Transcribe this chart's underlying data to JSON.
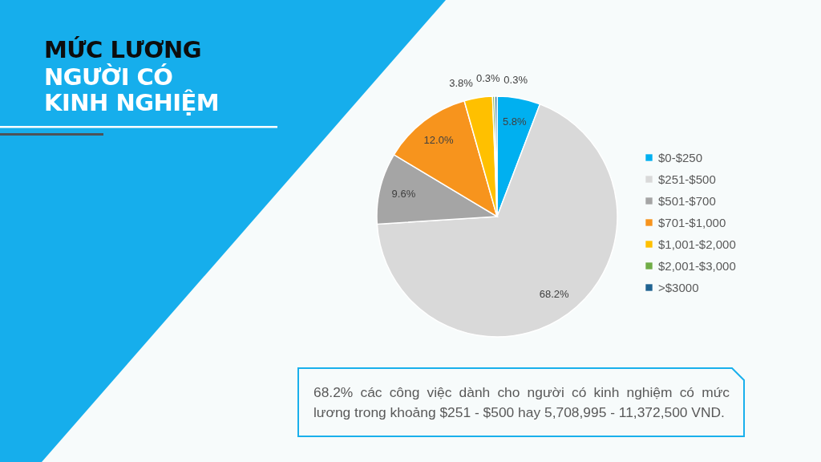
{
  "chart_data": {
    "type": "pie",
    "title": "MỨC LƯƠNG",
    "subtitle": "NGƯỜI CÓ KINH NGHIỆM",
    "categories": [
      "$0-$250",
      "$251-$500",
      "$501-$700",
      "$701-$1,000",
      "$1,001-$2,000",
      "$2,001-$3,000",
      ">$3000"
    ],
    "values": [
      5.8,
      68.2,
      9.6,
      12.0,
      3.8,
      0.3,
      0.3
    ],
    "colors": [
      "#00b0f0",
      "#d9d9d9",
      "#a5a5a5",
      "#f7941d",
      "#ffc000",
      "#70ad47",
      "#1f6391"
    ],
    "value_labels": [
      "5.8%",
      "68.2%",
      "9.6%",
      "12.0%",
      "3.8%",
      "0.3%",
      "0.3%"
    ],
    "legend": "right",
    "annotations": [
      "68.2% các công việc dành cho người có kinh nghiệm có mức lương trong khoảng $251 - $500 hay 5,708,995 - 11,372,500 VND."
    ]
  }
}
